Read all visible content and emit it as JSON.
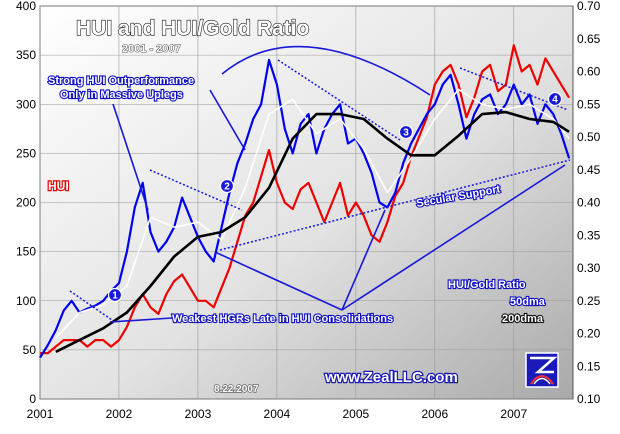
{
  "chart_data": {
    "type": "line",
    "title": "HUI and HUI/Gold Ratio",
    "subtitle": "2001 - 2007",
    "x_tick_labels": [
      "2001",
      "2002",
      "2003",
      "2004",
      "2005",
      "2006",
      "2007"
    ],
    "x_ticks": [
      2001,
      2002,
      2003,
      2004,
      2005,
      2006,
      2007
    ],
    "xlim": [
      2001.0,
      2007.75
    ],
    "y_left": {
      "ylim": [
        0,
        400
      ],
      "ticks": [
        0,
        50,
        100,
        150,
        200,
        250,
        300,
        350,
        400
      ],
      "label": "HUI"
    },
    "y_right": {
      "ylim": [
        0.1,
        0.7
      ],
      "ticks": [
        "0.10",
        "0.15",
        "0.20",
        "0.25",
        "0.30",
        "0.35",
        "0.40",
        "0.45",
        "0.50",
        "0.55",
        "0.60",
        "0.65",
        "0.70"
      ],
      "label": "HUI/Gold Ratio"
    },
    "series": [
      {
        "name": "HUI",
        "axis": "left",
        "color": "#0000ee",
        "x": [
          2001.0,
          2001.1,
          2001.2,
          2001.3,
          2001.4,
          2001.5,
          2001.6,
          2001.7,
          2001.8,
          2001.9,
          2002.0,
          2002.1,
          2002.2,
          2002.3,
          2002.4,
          2002.5,
          2002.6,
          2002.7,
          2002.8,
          2002.9,
          2003.0,
          2003.1,
          2003.2,
          2003.3,
          2003.4,
          2003.5,
          2003.6,
          2003.7,
          2003.8,
          2003.9,
          2004.0,
          2004.1,
          2004.2,
          2004.3,
          2004.4,
          2004.5,
          2004.6,
          2004.7,
          2004.8,
          2004.9,
          2005.0,
          2005.1,
          2005.2,
          2005.3,
          2005.4,
          2005.5,
          2005.6,
          2005.7,
          2005.8,
          2005.9,
          2006.0,
          2006.1,
          2006.2,
          2006.3,
          2006.4,
          2006.5,
          2006.6,
          2006.7,
          2006.8,
          2006.9,
          2007.0,
          2007.1,
          2007.2,
          2007.3,
          2007.4,
          2007.5,
          2007.6,
          2007.7
        ],
        "values": [
          42,
          55,
          70,
          90,
          100,
          88,
          92,
          95,
          100,
          110,
          118,
          150,
          195,
          220,
          170,
          150,
          160,
          175,
          205,
          185,
          165,
          150,
          140,
          175,
          210,
          240,
          260,
          285,
          300,
          345,
          320,
          275,
          250,
          280,
          290,
          250,
          275,
          290,
          300,
          260,
          265,
          250,
          230,
          200,
          195,
          210,
          240,
          260,
          275,
          290,
          300,
          320,
          330,
          300,
          265,
          290,
          305,
          310,
          290,
          300,
          320,
          300,
          310,
          280,
          300,
          290,
          270,
          245
        ]
      },
      {
        "name": "HUI/Gold Ratio",
        "axis": "right",
        "color": "#ee0000",
        "x": [
          2001.0,
          2001.1,
          2001.2,
          2001.3,
          2001.4,
          2001.5,
          2001.6,
          2001.7,
          2001.8,
          2001.9,
          2002.0,
          2002.1,
          2002.2,
          2002.3,
          2002.4,
          2002.5,
          2002.6,
          2002.7,
          2002.8,
          2002.9,
          2003.0,
          2003.1,
          2003.2,
          2003.3,
          2003.4,
          2003.5,
          2003.6,
          2003.7,
          2003.8,
          2003.9,
          2004.0,
          2004.1,
          2004.2,
          2004.3,
          2004.4,
          2004.5,
          2004.6,
          2004.7,
          2004.8,
          2004.9,
          2005.0,
          2005.1,
          2005.2,
          2005.3,
          2005.4,
          2005.5,
          2005.6,
          2005.7,
          2005.8,
          2005.9,
          2006.0,
          2006.1,
          2006.2,
          2006.3,
          2006.4,
          2006.5,
          2006.6,
          2006.7,
          2006.8,
          2006.9,
          2007.0,
          2007.1,
          2007.2,
          2007.3,
          2007.4,
          2007.5,
          2007.6,
          2007.7
        ],
        "values": [
          0.17,
          0.17,
          0.18,
          0.19,
          0.19,
          0.19,
          0.18,
          0.19,
          0.19,
          0.18,
          0.19,
          0.21,
          0.24,
          0.26,
          0.24,
          0.23,
          0.26,
          0.28,
          0.29,
          0.27,
          0.25,
          0.25,
          0.24,
          0.27,
          0.3,
          0.34,
          0.38,
          0.4,
          0.44,
          0.48,
          0.43,
          0.4,
          0.39,
          0.42,
          0.43,
          0.4,
          0.37,
          0.4,
          0.43,
          0.38,
          0.4,
          0.38,
          0.35,
          0.34,
          0.37,
          0.41,
          0.43,
          0.47,
          0.5,
          0.53,
          0.58,
          0.6,
          0.61,
          0.58,
          0.53,
          0.56,
          0.6,
          0.61,
          0.57,
          0.58,
          0.64,
          0.6,
          0.61,
          0.58,
          0.62,
          0.6,
          0.58,
          0.56
        ]
      },
      {
        "name": "50dma",
        "axis": "left",
        "color": "#ffffff",
        "x": [
          2001.2,
          2001.5,
          2001.8,
          2002.1,
          2002.4,
          2002.7,
          2003.0,
          2003.3,
          2003.6,
          2003.9,
          2004.2,
          2004.5,
          2004.8,
          2005.1,
          2005.4,
          2005.7,
          2006.0,
          2006.3,
          2006.6,
          2006.9,
          2007.2,
          2007.5,
          2007.7
        ],
        "values": [
          62,
          88,
          96,
          115,
          185,
          175,
          180,
          162,
          215,
          290,
          305,
          270,
          285,
          255,
          210,
          245,
          285,
          315,
          300,
          295,
          300,
          285,
          265
        ]
      },
      {
        "name": "200dma",
        "axis": "left",
        "color": "#000000",
        "x": [
          2001.2,
          2001.5,
          2001.8,
          2002.1,
          2002.4,
          2002.7,
          2003.0,
          2003.3,
          2003.6,
          2003.9,
          2004.2,
          2004.5,
          2004.8,
          2005.1,
          2005.4,
          2005.7,
          2006.0,
          2006.3,
          2006.6,
          2006.9,
          2007.2,
          2007.5,
          2007.7
        ],
        "values": [
          48,
          60,
          72,
          88,
          115,
          145,
          165,
          170,
          185,
          215,
          265,
          290,
          290,
          285,
          265,
          248,
          248,
          268,
          290,
          292,
          285,
          282,
          272
        ]
      }
    ],
    "annotations": {
      "date_stamp": "8.22.2007",
      "note_outperformance": [
        "Strong HUI Outperformance",
        "Only in Massive Uplegs"
      ],
      "note_weakest": "Weakest HGRs Late in HUI Consolidations",
      "note_support": "Secular Support",
      "label_hui": "HUI",
      "label_ratio": "HUI/Gold Ratio",
      "label_50dma": "50dma",
      "label_200dma": "200dma",
      "markers": [
        "1",
        "2",
        "3",
        "4"
      ],
      "website": "www.ZealLLC.com"
    },
    "grid": true
  }
}
